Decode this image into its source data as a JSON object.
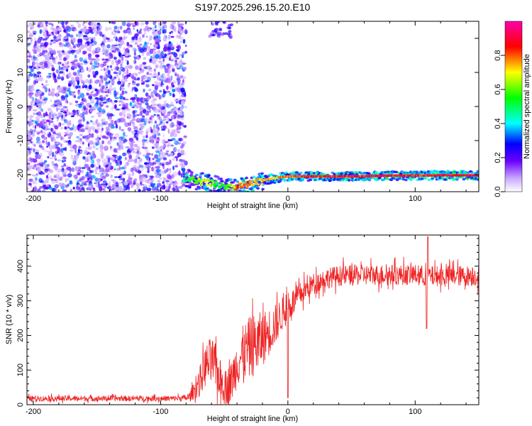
{
  "figure_title": "S197.2025.296.15.20.E10",
  "chart_data": [
    {
      "type": "heatmap",
      "title": "S197.2025.296.15.20.E10",
      "xlabel": "Height of straight line (km)",
      "ylabel": "Frequency (Hz)",
      "xlim": [
        -205,
        150
      ],
      "ylim": [
        -25,
        25
      ],
      "x_ticks": [
        -200,
        -100,
        0,
        100
      ],
      "y_ticks": [
        -20,
        -10,
        0,
        10,
        20
      ],
      "colorbar": {
        "label": "Normalized spectral amplitude",
        "range": [
          0,
          1
        ],
        "ticks": [
          0.0,
          0.2,
          0.4,
          0.6,
          0.8
        ],
        "colors": [
          "#ffffff",
          "#6a00ff",
          "#0000ff",
          "#00ffff",
          "#00ff00",
          "#ffff00",
          "#ff0000",
          "#ff00aa"
        ]
      },
      "noise_region_x": [
        -205,
        -80
      ],
      "signal_trace": {
        "x": [
          -80,
          -70,
          -62,
          -55,
          -48,
          -40,
          -32,
          -25,
          -18,
          -10,
          0,
          20,
          50,
          80,
          100,
          120,
          150
        ],
        "frequency": [
          -21,
          -22,
          -22.5,
          -23,
          -24,
          -23.5,
          -23,
          -22.5,
          -21.5,
          -21,
          -20.5,
          -20.5,
          -20.5,
          -20.3,
          -20.3,
          -20.2,
          -20.2
        ],
        "amplitude": [
          0.5,
          0.7,
          0.75,
          0.55,
          0.6,
          0.85,
          0.85,
          0.8,
          0.8,
          0.8,
          0.85,
          0.9,
          0.92,
          0.93,
          0.9,
          0.95,
          0.95
        ]
      }
    },
    {
      "type": "line",
      "xlabel": "Height of straight line (km)",
      "ylabel": "SNR (10 * v/v)",
      "xlim": [
        -205,
        150
      ],
      "ylim": [
        0,
        490
      ],
      "x_ticks": [
        -200,
        -100,
        0,
        100
      ],
      "y_ticks": [
        0,
        100,
        200,
        300,
        400
      ],
      "color": "#ee2222",
      "series": [
        {
          "envelope_x": [
            -205,
            -180,
            -150,
            -120,
            -90,
            -78,
            -70,
            -65,
            -60,
            -55,
            -50,
            -45,
            -40,
            -35,
            -30,
            -25,
            -20,
            -15,
            -10,
            -5,
            0,
            10,
            20,
            30,
            40,
            60,
            80,
            100,
            110,
            120,
            150
          ],
          "mean": [
            18,
            18,
            18,
            18,
            18,
            20,
            60,
            110,
            130,
            90,
            50,
            60,
            120,
            150,
            165,
            175,
            190,
            210,
            230,
            260,
            280,
            320,
            350,
            365,
            372,
            375,
            375,
            375,
            370,
            372,
            372
          ],
          "noise": [
            8,
            8,
            8,
            8,
            8,
            10,
            40,
            60,
            70,
            60,
            50,
            60,
            70,
            80,
            90,
            90,
            80,
            70,
            60,
            50,
            45,
            35,
            30,
            30,
            30,
            30,
            30,
            30,
            30,
            30,
            30
          ]
        }
      ]
    }
  ]
}
